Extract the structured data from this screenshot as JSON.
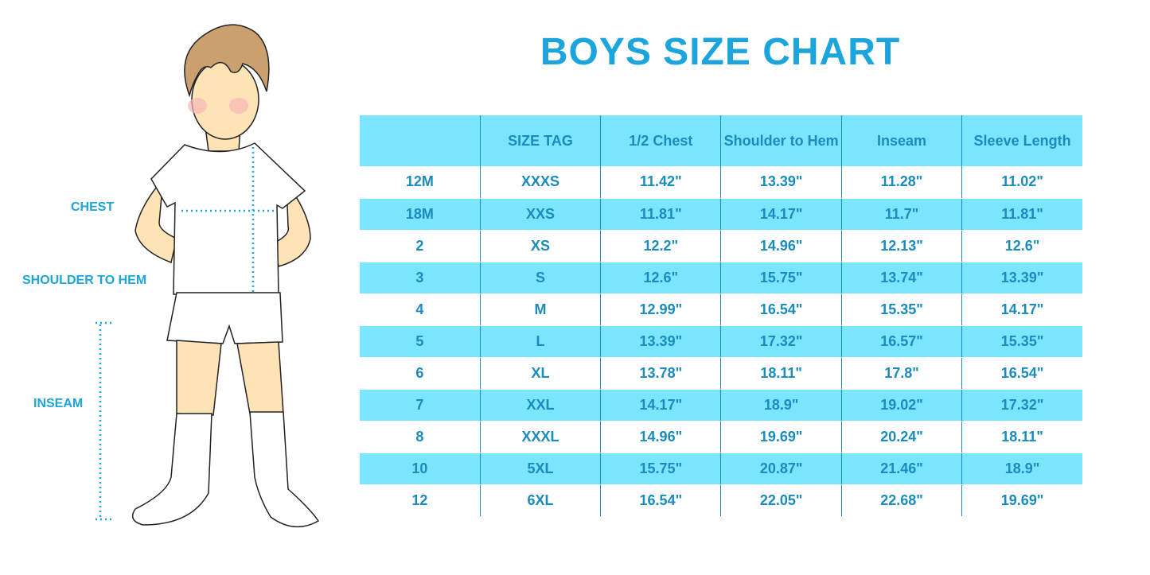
{
  "title": "BOYS SIZE CHART",
  "figure_labels": {
    "chest": "CHEST",
    "shoulder_to_hem": "SHOULDER TO HEM",
    "inseam": "INSEAM"
  },
  "colors": {
    "accent": "#1ba5dc",
    "row_fill": "#7be5fd",
    "text": "#1a8bbd"
  },
  "table": {
    "headers": [
      "",
      "SIZE TAG",
      "1/2 Chest",
      "Shoulder to Hem",
      "Inseam",
      "Sleeve Length"
    ],
    "rows": [
      [
        "12M",
        "XXXS",
        "11.42\"",
        "13.39\"",
        "11.28\"",
        "11.02\""
      ],
      [
        "18M",
        "XXS",
        "11.81\"",
        "14.17\"",
        "11.7\"",
        "11.81\""
      ],
      [
        "2",
        "XS",
        "12.2\"",
        "14.96\"",
        "12.13\"",
        "12.6\""
      ],
      [
        "3",
        "S",
        "12.6\"",
        "15.75\"",
        "13.74\"",
        "13.39\""
      ],
      [
        "4",
        "M",
        "12.99\"",
        "16.54\"",
        "15.35\"",
        "14.17\""
      ],
      [
        "5",
        "L",
        "13.39\"",
        "17.32\"",
        "16.57\"",
        "15.35\""
      ],
      [
        "6",
        "XL",
        "13.78\"",
        "18.11\"",
        "17.8\"",
        "16.54\""
      ],
      [
        "7",
        "XXL",
        "14.17\"",
        "18.9\"",
        "19.02\"",
        "17.32\""
      ],
      [
        "8",
        "XXXL",
        "14.96\"",
        "19.69\"",
        "20.24\"",
        "18.11\""
      ],
      [
        "10",
        "5XL",
        "15.75\"",
        "20.87\"",
        "21.46\"",
        "18.9\""
      ],
      [
        "12",
        "6XL",
        "16.54\"",
        "22.05\"",
        "22.68\"",
        "19.69\""
      ]
    ]
  }
}
